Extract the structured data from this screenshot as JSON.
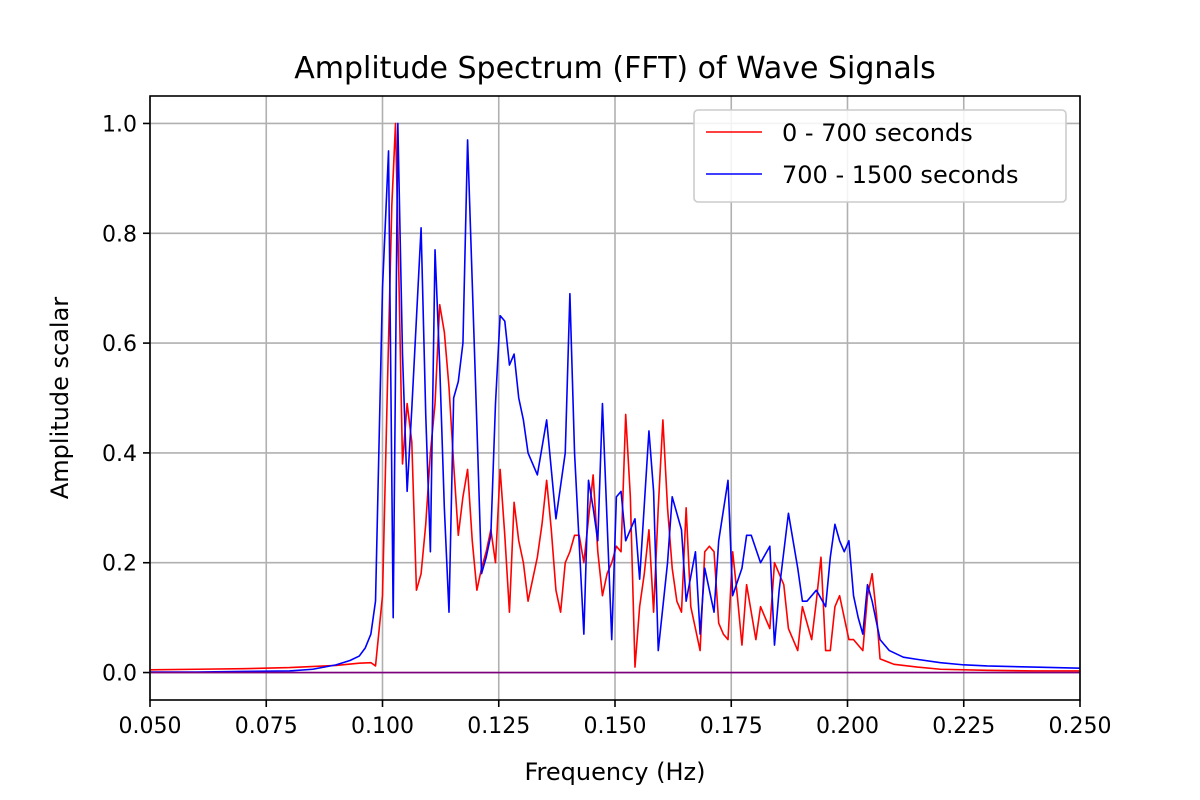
{
  "chart_data": {
    "type": "line",
    "title": "Amplitude Spectrum (FFT) of Wave Signals",
    "xlabel": "Frequency (Hz)",
    "ylabel": "Amplitude scalar",
    "xlim": [
      0.05,
      0.25
    ],
    "ylim": [
      -0.05,
      1.05
    ],
    "xticks": [
      0.05,
      0.075,
      0.1,
      0.125,
      0.15,
      0.175,
      0.2,
      0.225,
      0.25
    ],
    "xtick_labels": [
      "0.050",
      "0.075",
      "0.100",
      "0.125",
      "0.150",
      "0.175",
      "0.200",
      "0.225",
      "0.250"
    ],
    "yticks": [
      0.0,
      0.2,
      0.4,
      0.6,
      0.8,
      1.0
    ],
    "ytick_labels": [
      "0.0",
      "0.2",
      "0.4",
      "0.6",
      "0.8",
      "1.0"
    ],
    "grid": true,
    "legend_position": "top-right",
    "series": [
      {
        "name": "0 - 700 seconds",
        "color": "#ff0000",
        "points": [
          [
            0.05,
            0.005
          ],
          [
            0.06,
            0.006
          ],
          [
            0.07,
            0.007
          ],
          [
            0.08,
            0.009
          ],
          [
            0.09,
            0.013
          ],
          [
            0.095,
            0.017
          ],
          [
            0.0975,
            0.018
          ],
          [
            0.0985,
            0.012
          ],
          [
            0.1,
            0.14
          ],
          [
            0.101,
            0.5
          ],
          [
            0.102,
            0.85
          ],
          [
            0.1028,
            1.0
          ],
          [
            0.1035,
            0.73
          ],
          [
            0.1043,
            0.38
          ],
          [
            0.1053,
            0.49
          ],
          [
            0.1063,
            0.42
          ],
          [
            0.1073,
            0.15
          ],
          [
            0.1083,
            0.18
          ],
          [
            0.1093,
            0.27
          ],
          [
            0.1103,
            0.4
          ],
          [
            0.1113,
            0.49
          ],
          [
            0.1123,
            0.67
          ],
          [
            0.1133,
            0.62
          ],
          [
            0.1143,
            0.52
          ],
          [
            0.1153,
            0.38
          ],
          [
            0.1163,
            0.25
          ],
          [
            0.1173,
            0.32
          ],
          [
            0.1183,
            0.37
          ],
          [
            0.1193,
            0.24
          ],
          [
            0.1203,
            0.15
          ],
          [
            0.1213,
            0.19
          ],
          [
            0.1223,
            0.22
          ],
          [
            0.1233,
            0.26
          ],
          [
            0.1243,
            0.2
          ],
          [
            0.1253,
            0.37
          ],
          [
            0.1263,
            0.25
          ],
          [
            0.1273,
            0.11
          ],
          [
            0.1283,
            0.31
          ],
          [
            0.1293,
            0.24
          ],
          [
            0.1303,
            0.2
          ],
          [
            0.1313,
            0.13
          ],
          [
            0.1323,
            0.17
          ],
          [
            0.1333,
            0.21
          ],
          [
            0.1343,
            0.27
          ],
          [
            0.1353,
            0.35
          ],
          [
            0.1363,
            0.26
          ],
          [
            0.1373,
            0.15
          ],
          [
            0.1383,
            0.11
          ],
          [
            0.1393,
            0.2
          ],
          [
            0.1403,
            0.22
          ],
          [
            0.1413,
            0.25
          ],
          [
            0.1423,
            0.25
          ],
          [
            0.1433,
            0.2
          ],
          [
            0.1443,
            0.28
          ],
          [
            0.1453,
            0.36
          ],
          [
            0.1463,
            0.22
          ],
          [
            0.1473,
            0.14
          ],
          [
            0.1483,
            0.18
          ],
          [
            0.1493,
            0.2
          ],
          [
            0.1503,
            0.23
          ],
          [
            0.1513,
            0.22
          ],
          [
            0.1523,
            0.47
          ],
          [
            0.1533,
            0.32
          ],
          [
            0.1543,
            0.01
          ],
          [
            0.1553,
            0.12
          ],
          [
            0.1563,
            0.18
          ],
          [
            0.1573,
            0.26
          ],
          [
            0.1583,
            0.11
          ],
          [
            0.1593,
            0.3
          ],
          [
            0.1603,
            0.46
          ],
          [
            0.1613,
            0.3
          ],
          [
            0.1623,
            0.19
          ],
          [
            0.1633,
            0.13
          ],
          [
            0.1643,
            0.11
          ],
          [
            0.1653,
            0.3
          ],
          [
            0.1663,
            0.12
          ],
          [
            0.1673,
            0.08
          ],
          [
            0.1683,
            0.04
          ],
          [
            0.1693,
            0.22
          ],
          [
            0.1703,
            0.23
          ],
          [
            0.1713,
            0.22
          ],
          [
            0.1723,
            0.09
          ],
          [
            0.1733,
            0.07
          ],
          [
            0.1743,
            0.06
          ],
          [
            0.1753,
            0.22
          ],
          [
            0.1763,
            0.14
          ],
          [
            0.1773,
            0.05
          ],
          [
            0.1783,
            0.16
          ],
          [
            0.1793,
            0.11
          ],
          [
            0.1803,
            0.06
          ],
          [
            0.1813,
            0.12
          ],
          [
            0.1823,
            0.1
          ],
          [
            0.1833,
            0.08
          ],
          [
            0.1843,
            0.2
          ],
          [
            0.1853,
            0.18
          ],
          [
            0.1863,
            0.16
          ],
          [
            0.1873,
            0.08
          ],
          [
            0.1883,
            0.06
          ],
          [
            0.1893,
            0.04
          ],
          [
            0.1903,
            0.12
          ],
          [
            0.1913,
            0.09
          ],
          [
            0.1923,
            0.06
          ],
          [
            0.1933,
            0.13
          ],
          [
            0.1943,
            0.21
          ],
          [
            0.1953,
            0.04
          ],
          [
            0.1963,
            0.04
          ],
          [
            0.1973,
            0.12
          ],
          [
            0.1983,
            0.14
          ],
          [
            0.1993,
            0.1
          ],
          [
            0.2003,
            0.06
          ],
          [
            0.2013,
            0.06
          ],
          [
            0.2023,
            0.05
          ],
          [
            0.2033,
            0.04
          ],
          [
            0.2043,
            0.14
          ],
          [
            0.2053,
            0.18
          ],
          [
            0.2063,
            0.1
          ],
          [
            0.207,
            0.025
          ],
          [
            0.21,
            0.015
          ],
          [
            0.215,
            0.01
          ],
          [
            0.22,
            0.006
          ],
          [
            0.23,
            0.004
          ],
          [
            0.24,
            0.003
          ],
          [
            0.25,
            0.003
          ]
        ]
      },
      {
        "name": "700 - 1500 seconds",
        "color": "#0000ff",
        "points": [
          [
            0.05,
            0.001
          ],
          [
            0.06,
            0.001
          ],
          [
            0.07,
            0.002
          ],
          [
            0.08,
            0.003
          ],
          [
            0.085,
            0.006
          ],
          [
            0.09,
            0.014
          ],
          [
            0.093,
            0.022
          ],
          [
            0.095,
            0.03
          ],
          [
            0.0963,
            0.045
          ],
          [
            0.0975,
            0.07
          ],
          [
            0.0985,
            0.13
          ],
          [
            0.1,
            0.7
          ],
          [
            0.1013,
            0.95
          ],
          [
            0.1023,
            0.1
          ],
          [
            0.1033,
            1.0
          ],
          [
            0.1043,
            0.58
          ],
          [
            0.1053,
            0.33
          ],
          [
            0.1063,
            0.48
          ],
          [
            0.1083,
            0.81
          ],
          [
            0.1093,
            0.47
          ],
          [
            0.1103,
            0.22
          ],
          [
            0.1113,
            0.77
          ],
          [
            0.1123,
            0.56
          ],
          [
            0.1133,
            0.3
          ],
          [
            0.1143,
            0.11
          ],
          [
            0.1153,
            0.5
          ],
          [
            0.1163,
            0.53
          ],
          [
            0.1173,
            0.6
          ],
          [
            0.1183,
            0.97
          ],
          [
            0.1193,
            0.71
          ],
          [
            0.1203,
            0.45
          ],
          [
            0.1213,
            0.18
          ],
          [
            0.1223,
            0.21
          ],
          [
            0.1233,
            0.25
          ],
          [
            0.1243,
            0.49
          ],
          [
            0.1253,
            0.65
          ],
          [
            0.1263,
            0.64
          ],
          [
            0.1273,
            0.56
          ],
          [
            0.1283,
            0.58
          ],
          [
            0.1293,
            0.5
          ],
          [
            0.1303,
            0.46
          ],
          [
            0.1313,
            0.4
          ],
          [
            0.1333,
            0.36
          ],
          [
            0.1353,
            0.46
          ],
          [
            0.1373,
            0.28
          ],
          [
            0.1393,
            0.4
          ],
          [
            0.1403,
            0.69
          ],
          [
            0.1413,
            0.4
          ],
          [
            0.1433,
            0.07
          ],
          [
            0.1443,
            0.35
          ],
          [
            0.1453,
            0.3
          ],
          [
            0.1463,
            0.24
          ],
          [
            0.1473,
            0.49
          ],
          [
            0.1493,
            0.06
          ],
          [
            0.1503,
            0.32
          ],
          [
            0.1513,
            0.33
          ],
          [
            0.1523,
            0.24
          ],
          [
            0.1543,
            0.28
          ],
          [
            0.1553,
            0.17
          ],
          [
            0.1573,
            0.44
          ],
          [
            0.1583,
            0.33
          ],
          [
            0.1593,
            0.04
          ],
          [
            0.1613,
            0.2
          ],
          [
            0.1623,
            0.32
          ],
          [
            0.1643,
            0.26
          ],
          [
            0.1653,
            0.13
          ],
          [
            0.1673,
            0.22
          ],
          [
            0.1683,
            0.07
          ],
          [
            0.1693,
            0.19
          ],
          [
            0.1713,
            0.11
          ],
          [
            0.1723,
            0.24
          ],
          [
            0.1743,
            0.35
          ],
          [
            0.1753,
            0.14
          ],
          [
            0.1773,
            0.19
          ],
          [
            0.1783,
            0.25
          ],
          [
            0.1793,
            0.25
          ],
          [
            0.1813,
            0.2
          ],
          [
            0.1833,
            0.23
          ],
          [
            0.1843,
            0.05
          ],
          [
            0.1853,
            0.15
          ],
          [
            0.1873,
            0.29
          ],
          [
            0.1893,
            0.19
          ],
          [
            0.1903,
            0.13
          ],
          [
            0.1913,
            0.13
          ],
          [
            0.1933,
            0.15
          ],
          [
            0.1953,
            0.12
          ],
          [
            0.1963,
            0.21
          ],
          [
            0.1973,
            0.27
          ],
          [
            0.1983,
            0.24
          ],
          [
            0.1993,
            0.22
          ],
          [
            0.2003,
            0.24
          ],
          [
            0.2013,
            0.14
          ],
          [
            0.2023,
            0.1
          ],
          [
            0.2033,
            0.07
          ],
          [
            0.2043,
            0.16
          ],
          [
            0.2053,
            0.13
          ],
          [
            0.207,
            0.06
          ],
          [
            0.209,
            0.04
          ],
          [
            0.212,
            0.028
          ],
          [
            0.215,
            0.024
          ],
          [
            0.22,
            0.018
          ],
          [
            0.225,
            0.014
          ],
          [
            0.23,
            0.012
          ],
          [
            0.24,
            0.01
          ],
          [
            0.25,
            0.008
          ]
        ]
      }
    ]
  }
}
